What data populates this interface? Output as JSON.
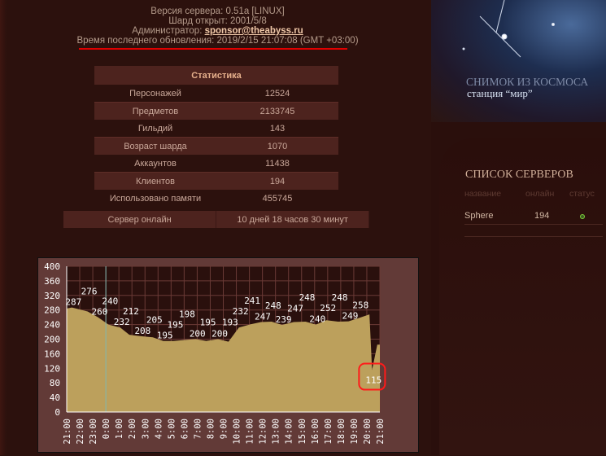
{
  "info": {
    "version": "Версия сервера: 0.51a [LINUX]",
    "opened": "Шард открыт: 2001/5/8",
    "admin_label": "Администратор: ",
    "admin_email": "sponsor@theabyss.ru",
    "updated": "Время последнего обновления: 2019/2/15 21:07:08 (GMT +03:00)"
  },
  "stats": {
    "title": "Статистика",
    "rows": [
      {
        "label": "Персонажей",
        "value": "12524"
      },
      {
        "label": "Предметов",
        "value": "2133745"
      },
      {
        "label": "Гильдий",
        "value": "143"
      },
      {
        "label": "Возраст шарда",
        "value": "1070"
      },
      {
        "label": "Аккаунтов",
        "value": "11438"
      },
      {
        "label": "Клиентов",
        "value": "194"
      },
      {
        "label": "Использовано памяти",
        "value": "455745"
      }
    ]
  },
  "uptime": {
    "label": "Сервер онлайн",
    "value": "10 дней 18 часов 30 минут"
  },
  "space": {
    "title": "СНИМОК ИЗ КОСМОСА",
    "subtitle": "станция “мир”"
  },
  "servers": {
    "title": "СПИСОК СЕРВЕРОВ",
    "headers": [
      "название",
      "онлайн",
      "статус"
    ],
    "rows": [
      {
        "name": "Sphere",
        "online": "194",
        "status": "online",
        "status_color": "#7fd03a"
      }
    ]
  },
  "chart_data": {
    "type": "area",
    "ylim": [
      0,
      400
    ],
    "yticks": [
      0,
      40,
      80,
      120,
      160,
      200,
      240,
      280,
      320,
      360,
      400
    ],
    "xticks": [
      "21:00",
      "22:00",
      "23:00",
      "0:00",
      "1:00",
      "2:00",
      "3:00",
      "4:00",
      "5:00",
      "6:00",
      "7:00",
      "8:00",
      "9:00",
      "10:00",
      "11:00",
      "12:00",
      "13:00",
      "14:00",
      "15:00",
      "16:00",
      "17:00",
      "18:00",
      "19:00",
      "20:00",
      "21:00"
    ],
    "grid": true,
    "fill_color": "#bca05c",
    "background": "#2a100d",
    "highlight": "115",
    "points": [
      {
        "x": "21:00",
        "y": 284,
        "label": ""
      },
      {
        "x": "21:24",
        "y": 287,
        "label": "287"
      },
      {
        "x": "22:36",
        "y": 276,
        "label": "276"
      },
      {
        "x": "23:24",
        "y": 260,
        "label": "260"
      },
      {
        "x": "00:12",
        "y": 240,
        "label": "240"
      },
      {
        "x": "01:06",
        "y": 232,
        "label": "232"
      },
      {
        "x": "01:48",
        "y": 212,
        "label": "212"
      },
      {
        "x": "02:42",
        "y": 208,
        "label": "208"
      },
      {
        "x": "03:36",
        "y": 205,
        "label": "205"
      },
      {
        "x": "04:24",
        "y": 195,
        "label": "195"
      },
      {
        "x": "05:12",
        "y": 195,
        "label": "195"
      },
      {
        "x": "06:06",
        "y": 198,
        "label": "198"
      },
      {
        "x": "06:54",
        "y": 200,
        "label": "200"
      },
      {
        "x": "07:42",
        "y": 195,
        "label": "195"
      },
      {
        "x": "08:36",
        "y": 200,
        "label": "200"
      },
      {
        "x": "09:24",
        "y": 193,
        "label": "193"
      },
      {
        "x": "10:12",
        "y": 232,
        "label": "232"
      },
      {
        "x": "11:06",
        "y": 241,
        "label": "241"
      },
      {
        "x": "11:54",
        "y": 247,
        "label": "247"
      },
      {
        "x": "12:42",
        "y": 248,
        "label": "248"
      },
      {
        "x": "13:30",
        "y": 239,
        "label": "239"
      },
      {
        "x": "14:24",
        "y": 247,
        "label": "247"
      },
      {
        "x": "15:18",
        "y": 248,
        "label": "248"
      },
      {
        "x": "16:06",
        "y": 240,
        "label": "240"
      },
      {
        "x": "16:54",
        "y": 252,
        "label": "252"
      },
      {
        "x": "17:48",
        "y": 248,
        "label": "248"
      },
      {
        "x": "18:36",
        "y": 249,
        "label": "249"
      },
      {
        "x": "19:24",
        "y": 258,
        "label": "258"
      },
      {
        "x": "20:12",
        "y": 268,
        "label": ""
      },
      {
        "x": "20:24",
        "y": 115,
        "label": "115"
      },
      {
        "x": "20:48",
        "y": 185,
        "label": ""
      }
    ]
  }
}
